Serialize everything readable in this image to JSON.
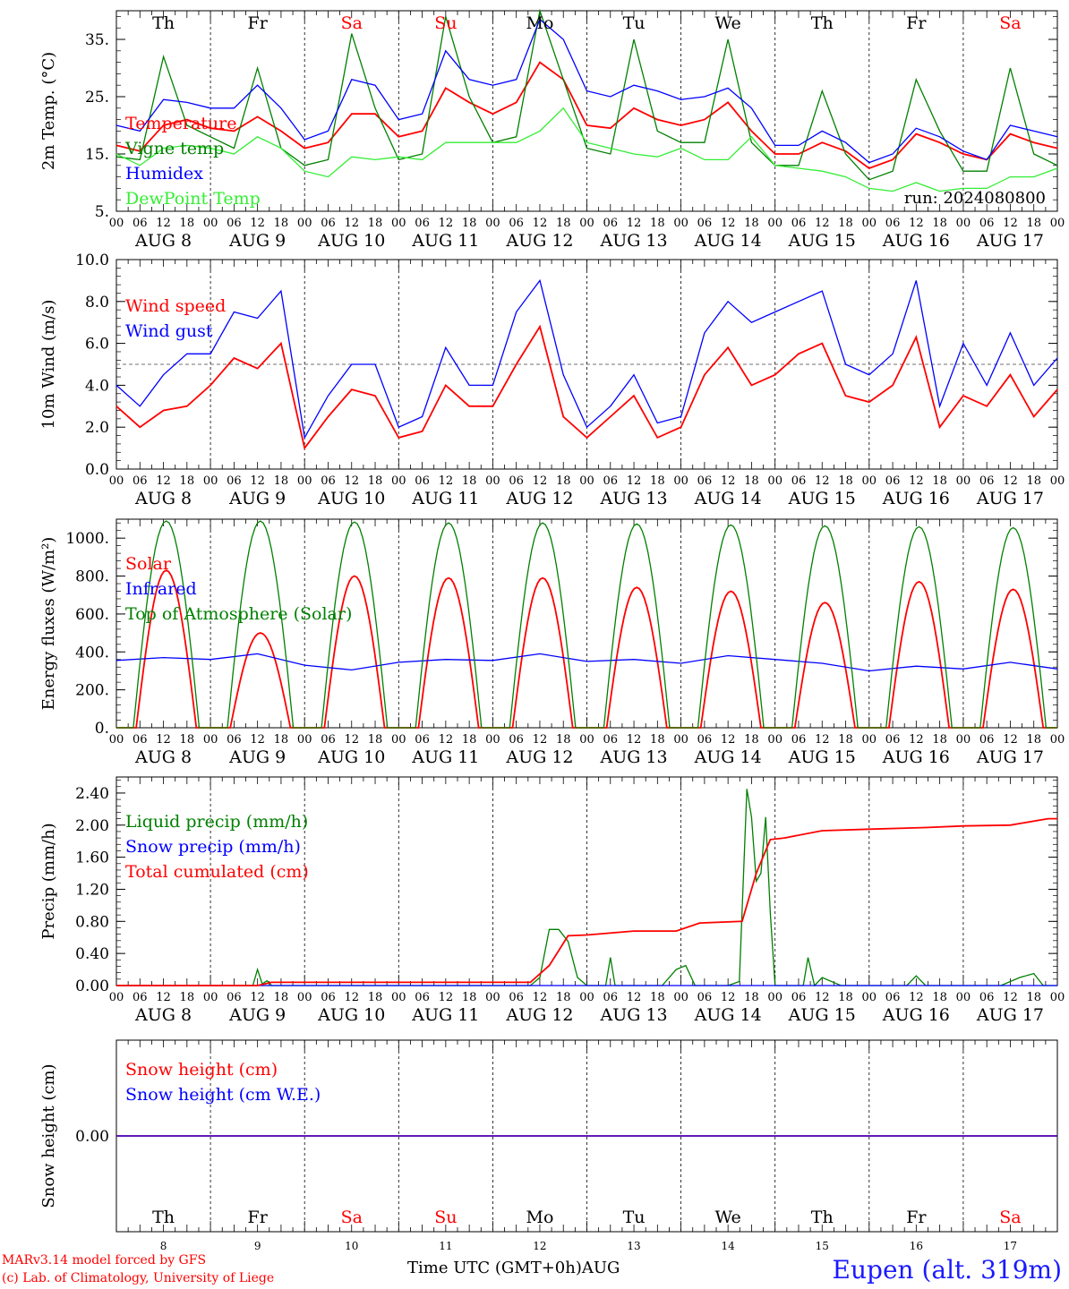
{
  "footer": {
    "credit_line1": "MARv3.14 model forced by GFS",
    "credit_line2": "(c) Lab. of Climatology, University of Liege",
    "time_axis_label": "Time UTC (GMT+0h)",
    "month_label": "AUG",
    "station": "Eupen (alt. 319m)"
  },
  "run_label": "run: 2024080800",
  "colors": {
    "red": "#ff0000",
    "green": "#008000",
    "blue": "#0000ff",
    "lightgreen": "#33ee33",
    "purple": "#800080"
  },
  "x_axis": {
    "hour_labels": [
      "00",
      "06",
      "12",
      "18"
    ],
    "final_hour_label": "00",
    "dates": [
      "AUG  8",
      "AUG  9",
      "AUG 10",
      "AUG 11",
      "AUG 12",
      "AUG 13",
      "AUG 14",
      "AUG 15",
      "AUG 16",
      "AUG 17"
    ],
    "weekdays": [
      "Th",
      "Fr",
      "Sa",
      "Su",
      "Mo",
      "Tu",
      "We",
      "Th",
      "Fr",
      "Sa"
    ],
    "weekend": [
      false,
      false,
      true,
      true,
      false,
      false,
      false,
      false,
      false,
      true
    ],
    "day_numbers": [
      "8",
      "9",
      "10",
      "11",
      "12",
      "13",
      "14",
      "15",
      "16",
      "17"
    ]
  },
  "chart_data": [
    {
      "type": "line",
      "ylabel": "2m Temp. (°C)",
      "ylim": [
        5,
        40
      ],
      "yticks": [
        5,
        15,
        25,
        35
      ],
      "ytick_labels": [
        "5.",
        "15.",
        "25.",
        "35."
      ],
      "x_days": [
        0,
        10
      ],
      "grid": "dashed vertical lines at day boundaries",
      "legend_position": "lower-left",
      "series": [
        {
          "name": "Temperature",
          "color": "red",
          "days": [
            0,
            0.25,
            0.5,
            0.75,
            1,
            1.25,
            1.5,
            1.75,
            2,
            2.25,
            2.5,
            2.75,
            3,
            3.25,
            3.5,
            3.75,
            4,
            4.25,
            4.5,
            4.75,
            5,
            5.25,
            5.5,
            5.75,
            6,
            6.25,
            6.5,
            6.75,
            7,
            7.25,
            7.5,
            7.75,
            8,
            8.25,
            8.5,
            8.75,
            9,
            9.25,
            9.5,
            9.75,
            10
          ],
          "values": [
            16.5,
            15.5,
            20,
            21,
            19.5,
            19,
            21.5,
            19,
            16,
            17,
            22,
            22,
            18,
            19,
            26.5,
            24,
            22,
            24,
            31,
            28,
            20,
            19.5,
            23,
            21,
            20,
            21,
            24,
            19,
            15,
            15,
            17,
            15.5,
            12.5,
            14,
            18.5,
            17,
            15,
            14,
            18.5,
            17,
            16
          ]
        },
        {
          "name": "Vigne temp",
          "color": "green",
          "days": [
            0,
            0.25,
            0.5,
            0.75,
            1,
            1.25,
            1.5,
            1.75,
            2,
            2.25,
            2.5,
            2.75,
            3,
            3.25,
            3.5,
            3.75,
            4,
            4.25,
            4.5,
            4.75,
            5,
            5.25,
            5.5,
            5.75,
            6,
            6.25,
            6.5,
            6.75,
            7,
            7.25,
            7.5,
            7.75,
            8,
            8.25,
            8.5,
            8.75,
            9,
            9.25,
            9.5,
            9.75,
            10
          ],
          "values": [
            14.5,
            14,
            32,
            20,
            18,
            16,
            30,
            16,
            13,
            14,
            36,
            23,
            14,
            15,
            39,
            25,
            17,
            18,
            40,
            28,
            16,
            15,
            35,
            19,
            17,
            17,
            35,
            17,
            13,
            13,
            26,
            15,
            10.5,
            12,
            28,
            19,
            12,
            12,
            30,
            15,
            13
          ]
        },
        {
          "name": "Humidex",
          "color": "blue",
          "days": [
            0,
            0.25,
            0.5,
            0.75,
            1,
            1.25,
            1.5,
            1.75,
            2,
            2.25,
            2.5,
            2.75,
            3,
            3.25,
            3.5,
            3.75,
            4,
            4.25,
            4.5,
            4.75,
            5,
            5.25,
            5.5,
            5.75,
            6,
            6.25,
            6.5,
            6.75,
            7,
            7.25,
            7.5,
            7.75,
            8,
            8.25,
            8.5,
            8.75,
            9,
            9.25,
            9.5,
            9.75,
            10
          ],
          "values": [
            20,
            19,
            24.5,
            24,
            23,
            23,
            27,
            23,
            17.5,
            19,
            28,
            27,
            21,
            22,
            33,
            28,
            27,
            28,
            38.5,
            35,
            26,
            25,
            27,
            26,
            24.5,
            25,
            26.5,
            23,
            16.5,
            16.5,
            19,
            17,
            13.5,
            15,
            19.5,
            18,
            15.5,
            14,
            20,
            19,
            18
          ]
        },
        {
          "name": "DewPoint Temp",
          "color": "lightgreen",
          "days": [
            0,
            0.25,
            0.5,
            0.75,
            1,
            1.25,
            1.5,
            1.75,
            2,
            2.25,
            2.5,
            2.75,
            3,
            3.25,
            3.5,
            3.75,
            4,
            4.25,
            4.5,
            4.75,
            5,
            5.25,
            5.5,
            5.75,
            6,
            6.25,
            6.5,
            6.75,
            7,
            7.25,
            7.5,
            7.75,
            8,
            8.25,
            8.5,
            8.75,
            9,
            9.25,
            9.5,
            9.75,
            10
          ],
          "values": [
            15,
            13,
            16,
            16.5,
            16,
            15,
            18,
            16,
            12,
            11,
            14.5,
            14,
            14.5,
            14,
            17,
            17,
            17,
            17,
            19,
            23,
            17,
            16,
            15,
            14.5,
            16,
            14,
            14,
            18,
            13,
            12.5,
            12,
            11,
            9,
            8.5,
            10,
            8.5,
            9,
            9,
            11,
            11,
            12.5
          ]
        }
      ]
    },
    {
      "type": "line",
      "ylabel": "10m Wind (m/s)",
      "ylim": [
        0,
        10
      ],
      "yticks": [
        0,
        2,
        4,
        6,
        8,
        10
      ],
      "ytick_labels": [
        "0.0",
        "2.0",
        "4.0",
        "6.0",
        "8.0",
        "10.0"
      ],
      "x_days": [
        0,
        10
      ],
      "reference_line": 5,
      "legend_position": "upper-left",
      "series": [
        {
          "name": "Wind speed",
          "color": "red",
          "days": [
            0,
            0.25,
            0.5,
            0.75,
            1,
            1.25,
            1.5,
            1.75,
            2,
            2.25,
            2.5,
            2.75,
            3,
            3.25,
            3.5,
            3.75,
            4,
            4.25,
            4.5,
            4.75,
            5,
            5.25,
            5.5,
            5.75,
            6,
            6.25,
            6.5,
            6.75,
            7,
            7.25,
            7.5,
            7.75,
            8,
            8.25,
            8.5,
            8.75,
            9,
            9.25,
            9.5,
            9.75,
            10
          ],
          "values": [
            3,
            2,
            2.8,
            3,
            4,
            5.3,
            4.8,
            6,
            1,
            2.5,
            3.8,
            3.5,
            1.5,
            1.8,
            4,
            3,
            3,
            5,
            6.8,
            2.5,
            1.5,
            2.5,
            3.5,
            1.5,
            2,
            4.5,
            5.8,
            4,
            4.5,
            5.5,
            6,
            3.5,
            3.2,
            4,
            6.3,
            2,
            3.5,
            3,
            4.5,
            2.5,
            3.8
          ]
        },
        {
          "name": "Wind gust",
          "color": "blue",
          "days": [
            0,
            0.25,
            0.5,
            0.75,
            1,
            1.25,
            1.5,
            1.75,
            2,
            2.25,
            2.5,
            2.75,
            3,
            3.25,
            3.5,
            3.75,
            4,
            4.25,
            4.5,
            4.75,
            5,
            5.25,
            5.5,
            5.75,
            6,
            6.25,
            6.5,
            6.75,
            7,
            7.25,
            7.5,
            7.75,
            8,
            8.25,
            8.5,
            8.75,
            9,
            9.25,
            9.5,
            9.75,
            10
          ],
          "values": [
            4,
            3,
            4.5,
            5.5,
            5.5,
            7.5,
            7.2,
            8.5,
            1.5,
            3.5,
            5,
            5,
            2,
            2.5,
            5.8,
            4,
            4,
            7.5,
            9,
            4.5,
            2,
            3,
            4.5,
            2.2,
            2.5,
            6.5,
            8,
            7,
            7.5,
            8,
            8.5,
            5,
            4.5,
            5.5,
            9,
            3,
            6,
            4,
            6.5,
            4,
            5.3
          ]
        }
      ]
    },
    {
      "type": "line",
      "ylabel": "Energy fluxes (W/m²)",
      "ylim": [
        0,
        1100
      ],
      "yticks": [
        0,
        200,
        400,
        600,
        800,
        1000
      ],
      "ytick_labels": [
        "0.",
        "200.",
        "400.",
        "600.",
        "800.",
        "1000."
      ],
      "x_days": [
        0,
        10
      ],
      "legend_position": "upper-left",
      "daily_peaks": {
        "solar": [
          830,
          500,
          800,
          790,
          790,
          740,
          720,
          660,
          770,
          730
        ],
        "top_of_atmosphere": [
          1090,
          1090,
          1085,
          1080,
          1080,
          1075,
          1070,
          1065,
          1060,
          1055
        ]
      },
      "series": [
        {
          "name": "Solar",
          "color": "red",
          "note": "daytime curve, daily peak values above"
        },
        {
          "name": "Infrared",
          "color": "blue",
          "days": [
            0,
            0.5,
            1,
            1.5,
            2,
            2.5,
            3,
            3.5,
            4,
            4.5,
            5,
            5.5,
            6,
            6.5,
            7,
            7.5,
            8,
            8.5,
            9,
            9.5,
            10
          ],
          "values": [
            355,
            370,
            360,
            390,
            330,
            305,
            345,
            360,
            355,
            390,
            350,
            360,
            340,
            380,
            360,
            340,
            300,
            325,
            310,
            345,
            310
          ]
        },
        {
          "name": "Top of Atmosphere (Solar)",
          "color": "green",
          "note": "daytime curve, daily peak values above"
        }
      ]
    },
    {
      "type": "line",
      "ylabel": "Precip (mm/h)",
      "ylim": [
        0,
        2.6
      ],
      "yticks": [
        0,
        0.4,
        0.8,
        1.2,
        1.6,
        2.0,
        2.4
      ],
      "ytick_labels": [
        "0.00",
        "0.40",
        "0.80",
        "1.20",
        "1.60",
        "2.00",
        "2.40"
      ],
      "x_days": [
        0,
        10
      ],
      "legend_position": "upper-left",
      "series": [
        {
          "name": "Liquid precip (mm/h)",
          "color": "green",
          "days": [
            0,
            1.45,
            1.5,
            1.55,
            1.6,
            1.65,
            4.4,
            4.5,
            4.6,
            4.7,
            4.8,
            4.9,
            5,
            5.2,
            5.25,
            5.3,
            5.4,
            5.8,
            5.95,
            6.05,
            6.15,
            6.5,
            6.62,
            6.7,
            6.75,
            6.8,
            6.85,
            6.9,
            6.95,
            7,
            7.3,
            7.35,
            7.42,
            7.5,
            7.7,
            7.9,
            8.4,
            8.5,
            8.6,
            9.4,
            9.6,
            9.75,
            9.85,
            10
          ],
          "values": [
            0,
            0,
            0.2,
            0.02,
            0.06,
            0,
            0,
            0.1,
            0.7,
            0.7,
            0.55,
            0.1,
            0,
            0,
            0.35,
            0,
            0,
            0,
            0.2,
            0.25,
            0,
            0,
            0.05,
            2.45,
            2.1,
            1.3,
            1.4,
            2.1,
            0.9,
            0,
            0,
            0.35,
            0,
            0.1,
            0,
            0,
            0,
            0.12,
            0,
            0,
            0.1,
            0.15,
            0,
            0
          ]
        },
        {
          "name": "Snow precip (mm/h)",
          "color": "blue",
          "days": [
            0,
            10
          ],
          "values": [
            0,
            0
          ]
        },
        {
          "name": "Total cumulated (cm)",
          "color": "red",
          "days": [
            0,
            1.5,
            1.65,
            4.4,
            4.6,
            4.8,
            5,
            5.5,
            5.95,
            6.2,
            6.65,
            6.8,
            6.95,
            7.1,
            7.5,
            8,
            8.6,
            9,
            9.5,
            9.9,
            10
          ],
          "values": [
            0,
            0,
            0.04,
            0.04,
            0.25,
            0.62,
            0.63,
            0.68,
            0.68,
            0.78,
            0.8,
            1.4,
            1.82,
            1.84,
            1.93,
            1.95,
            1.97,
            1.99,
            2.0,
            2.08,
            2.08
          ]
        }
      ]
    },
    {
      "type": "line",
      "ylabel": "Snow height (cm)",
      "ylim": [
        -1,
        1
      ],
      "yticks": [
        0
      ],
      "ytick_labels": [
        "0.00"
      ],
      "x_days": [
        0,
        10
      ],
      "legend_position": "upper-left",
      "series": [
        {
          "name": "Snow height (cm)",
          "color": "red",
          "days": [
            0,
            10
          ],
          "values": [
            0,
            0
          ]
        },
        {
          "name": "Snow height (cm W.E.)",
          "color": "blue",
          "days": [
            0,
            10
          ],
          "values": [
            0,
            0
          ]
        }
      ]
    }
  ]
}
